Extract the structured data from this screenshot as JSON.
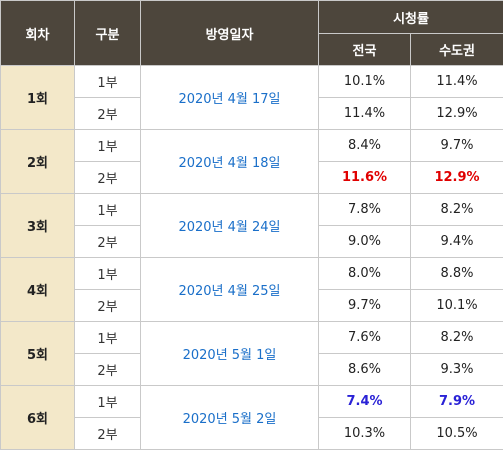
{
  "header": {
    "episode": "회차",
    "part": "구분",
    "air_date": "방영일자",
    "ratings": "시청률",
    "national": "전국",
    "capital": "수도권"
  },
  "colors": {
    "header_bg": "#4d463c",
    "episode_bg": "#f3e8c9",
    "date_text": "#1a6fc9",
    "highest": "#e00000",
    "lowest": "#2a22d6"
  },
  "rows": [
    {
      "episode": "1회",
      "date": "2020년 4월 17일",
      "parts": [
        {
          "part": "1부",
          "national": "10.1%",
          "capital": "11.4%"
        },
        {
          "part": "2부",
          "national": "11.4%",
          "capital": "12.9%"
        }
      ]
    },
    {
      "episode": "2회",
      "date": "2020년 4월 18일",
      "parts": [
        {
          "part": "1부",
          "national": "8.4%",
          "capital": "9.7%"
        },
        {
          "part": "2부",
          "national": "11.6%",
          "capital": "12.9%"
        }
      ]
    },
    {
      "episode": "3회",
      "date": "2020년 4월 24일",
      "parts": [
        {
          "part": "1부",
          "national": "7.8%",
          "capital": "8.2%"
        },
        {
          "part": "2부",
          "national": "9.0%",
          "capital": "9.4%"
        }
      ]
    },
    {
      "episode": "4회",
      "date": "2020년 4월 25일",
      "parts": [
        {
          "part": "1부",
          "national": "8.0%",
          "capital": "8.8%"
        },
        {
          "part": "2부",
          "national": "9.7%",
          "capital": "10.1%"
        }
      ]
    },
    {
      "episode": "5회",
      "date": "2020년 5월 1일",
      "parts": [
        {
          "part": "1부",
          "national": "7.6%",
          "capital": "8.2%"
        },
        {
          "part": "2부",
          "national": "8.6%",
          "capital": "9.3%"
        }
      ]
    },
    {
      "episode": "6회",
      "date": "2020년 5월 2일",
      "parts": [
        {
          "part": "1부",
          "national": "7.4%",
          "capital": "7.9%"
        },
        {
          "part": "2부",
          "national": "10.3%",
          "capital": "10.5%"
        }
      ]
    }
  ]
}
